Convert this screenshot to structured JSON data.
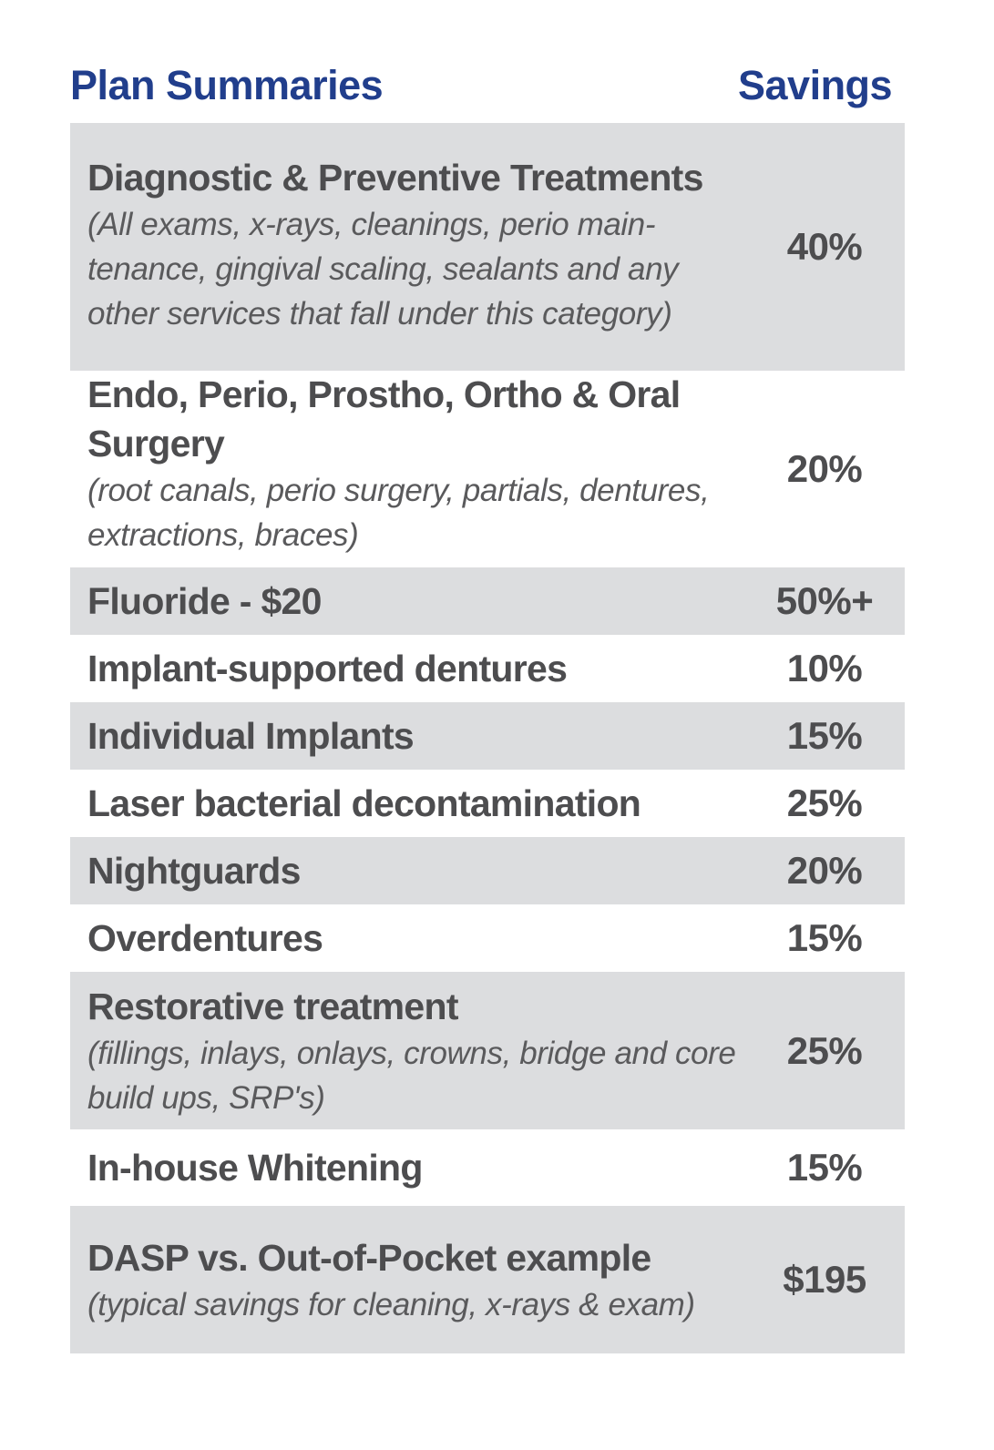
{
  "header": {
    "plan_label": "Plan Summaries",
    "savings_label": "Savings"
  },
  "colors": {
    "heading": "#213e8c",
    "body_text": "#4d4d4f",
    "row_shade": "#dcdddf"
  },
  "rows": [
    {
      "title": "Diagnostic & Preventive Treatments",
      "note": "(All exams, x-rays, cleanings, perio main-tenance, gingival scaling, sealants and any other services that fall under this category)",
      "value": "40%"
    },
    {
      "title": "Endo, Perio, Prostho, Ortho & Oral Surgery",
      "note": "(root canals, perio surgery, partials, dentures, extractions, braces)",
      "value": "20%"
    },
    {
      "title": "Fluoride - $20",
      "note": "",
      "value": "50%+"
    },
    {
      "title": "Implant-supported dentures",
      "note": "",
      "value": "10%"
    },
    {
      "title": "Individual Implants",
      "note": "",
      "value": "15%"
    },
    {
      "title": "Laser bacterial decontamination",
      "note": "",
      "value": "25%"
    },
    {
      "title": "Nightguards",
      "note": "",
      "value": "20%"
    },
    {
      "title": "Overdentures",
      "note": "",
      "value": "15%"
    },
    {
      "title": "Restorative treatment",
      "note": "(fillings, inlays, onlays, crowns, bridge and core build ups, SRP's)",
      "value": "25%"
    },
    {
      "title": "In-house Whitening",
      "note": "",
      "value": "15%"
    },
    {
      "title": "DASP vs. Out-of-Pocket example",
      "note": "(typical savings for cleaning, x-rays & exam)",
      "value": "$195"
    }
  ]
}
